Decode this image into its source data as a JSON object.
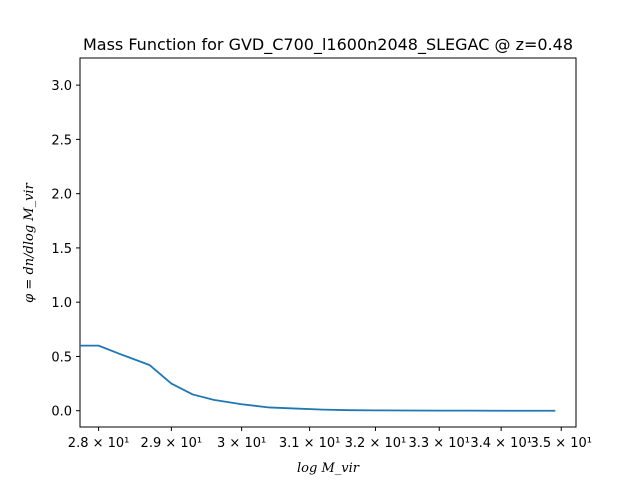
{
  "chart_data": {
    "type": "line",
    "title": "Mass Function for GVD_C700_l1600n2048_SLEGAC @ z=0.48",
    "xlabel": "log M_vir",
    "ylabel": "φ = dn/dlog M_vir",
    "xlim": [
      27.75,
      35.25
    ],
    "ylim": [
      -0.15,
      3.25
    ],
    "x_scale": "log",
    "x_ticks": [
      {
        "value": 28,
        "label": "2.8 × 10¹"
      },
      {
        "value": 29,
        "label": "2.9 × 10¹"
      },
      {
        "value": 30,
        "label": "3 × 10¹"
      },
      {
        "value": 31,
        "label": "3.1 × 10¹"
      },
      {
        "value": 32,
        "label": "3.2 × 10¹"
      },
      {
        "value": 33,
        "label": "3.3 × 10¹"
      },
      {
        "value": 34,
        "label": "3.4 × 10¹"
      },
      {
        "value": 35,
        "label": "3.5 × 10¹"
      }
    ],
    "y_ticks": [
      {
        "value": 0.0,
        "label": "0.0"
      },
      {
        "value": 0.5,
        "label": "0.5"
      },
      {
        "value": 1.0,
        "label": "1.0"
      },
      {
        "value": 1.5,
        "label": "1.5"
      },
      {
        "value": 2.0,
        "label": "2.0"
      },
      {
        "value": 2.5,
        "label": "2.5"
      },
      {
        "value": 3.0,
        "label": "3.0"
      }
    ],
    "series": [
      {
        "color": "#1f77b4",
        "x": [
          27.75,
          28.0,
          28.3,
          28.7,
          29.0,
          29.3,
          29.6,
          30.0,
          30.4,
          30.8,
          31.2,
          31.6,
          32.0,
          32.5,
          33.0,
          33.5,
          34.0,
          34.5,
          34.9
        ],
        "y": [
          0.6,
          0.6,
          0.52,
          0.42,
          0.25,
          0.15,
          0.1,
          0.06,
          0.03,
          0.02,
          0.01,
          0.005,
          0.003,
          0.002,
          0.001,
          0.001,
          0.0,
          0.0,
          0.0
        ]
      }
    ],
    "grid": false,
    "legend": "none"
  }
}
